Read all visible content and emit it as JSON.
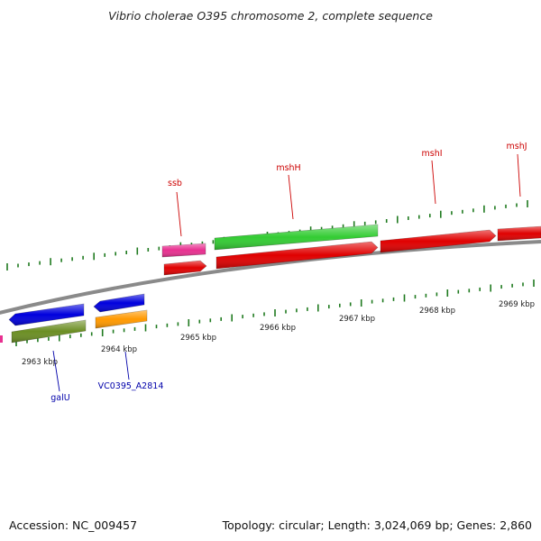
{
  "title": "Vibrio cholerae O395 chromosome 2, complete sequence",
  "footer": {
    "accession": "Accession: NC_009457",
    "summary": "Topology: circular; Length: 3,024,069 bp; Genes: 2,860"
  },
  "colors": {
    "backbone": "#8a8a8a",
    "tick": "#1f7a1f",
    "label_forward": "#cc0000",
    "label_reverse": "#0000aa",
    "tick_label": "#222222"
  },
  "ticks": [
    {
      "label": "2963 kbp"
    },
    {
      "label": "2964 kbp"
    },
    {
      "label": "2965 kbp"
    },
    {
      "label": "2966 kbp"
    },
    {
      "label": "2967 kbp"
    },
    {
      "label": "2968 kbp"
    },
    {
      "label": "2969 kbp"
    }
  ],
  "genes": [
    {
      "label": "ssb",
      "strand": "forward",
      "color": "#e83090"
    },
    {
      "label": "mshH",
      "strand": "forward",
      "color": "#33cc33"
    },
    {
      "label": "mshI",
      "strand": "forward",
      "color": "#e00000"
    },
    {
      "label": "mshJ",
      "strand": "forward",
      "color": "#e00000"
    },
    {
      "label": "galU",
      "strand": "reverse",
      "color": "#0000dd"
    },
    {
      "label": "VC0395_A2814",
      "strand": "reverse",
      "color": "#0000dd"
    }
  ],
  "features": [
    {
      "name": "cds-ssb",
      "color": "#e00000"
    },
    {
      "name": "cds-mshH",
      "color": "#e00000"
    },
    {
      "name": "cds-mshI",
      "color": "#e00000"
    },
    {
      "name": "cds-mshJ",
      "color": "#e00000"
    },
    {
      "name": "gene-rev-olive",
      "color": "#6b8e23"
    },
    {
      "name": "gene-rev-orange",
      "color": "#ff9900"
    }
  ]
}
